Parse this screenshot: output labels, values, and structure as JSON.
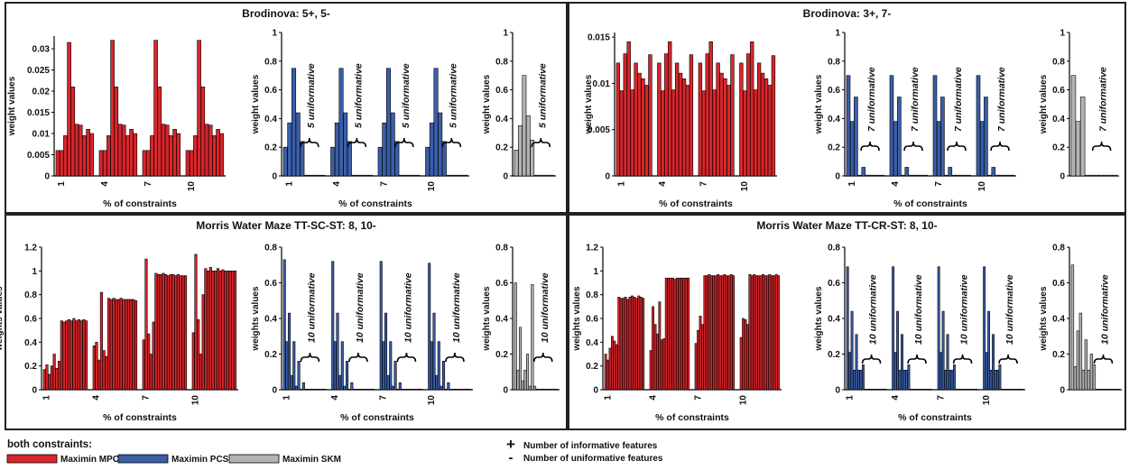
{
  "colors": {
    "mpckm": "#d9262b",
    "pcskm": "#3b5ea8",
    "skm": "#b4b4b4",
    "frame": "#222222",
    "bar_edge": "#000000"
  },
  "legend": {
    "title": "both constraints:",
    "entries": [
      {
        "key": "mpckm",
        "label": "Maximin MPCKM"
      },
      {
        "key": "pcskm",
        "label": "Maximin PCSKM"
      },
      {
        "key": "skm",
        "label": "Maximin SKM"
      }
    ],
    "symbols": [
      {
        "glyph": "+",
        "text": "Number of informative features"
      },
      {
        "glyph": "-",
        "text": "Number of uniformative features"
      }
    ]
  },
  "chart_data": [
    {
      "type": "bar",
      "title": "Brodinova: 5+, 5-",
      "subplots": [
        {
          "series": "mpckm",
          "ylabel": "weight values",
          "xlabel": "% of constraints",
          "ylim": [
            0,
            0.033
          ],
          "yticks": [
            0,
            0.005,
            0.01,
            0.015,
            0.02,
            0.025,
            0.03
          ],
          "ytick_labels": [
            "0",
            "0.005",
            "0.01",
            "0.015",
            "0.02",
            "0.025",
            "0.03"
          ],
          "xtick_labels": [
            "1",
            "4",
            "7",
            "10"
          ],
          "groups": [
            [
              0.006,
              0.006,
              0.0095,
              0.0315,
              0.021,
              0.0122,
              0.012,
              0.0095,
              0.011,
              0.01
            ],
            [
              0.006,
              0.006,
              0.0095,
              0.032,
              0.021,
              0.0122,
              0.012,
              0.0095,
              0.011,
              0.01
            ],
            [
              0.006,
              0.006,
              0.0095,
              0.032,
              0.021,
              0.0122,
              0.012,
              0.0095,
              0.011,
              0.01
            ],
            [
              0.006,
              0.006,
              0.0095,
              0.032,
              0.021,
              0.0122,
              0.012,
              0.0095,
              0.011,
              0.01
            ]
          ]
        },
        {
          "series": "pcskm",
          "ylabel": "weight values",
          "xlabel": "% of constraints",
          "ylim": [
            0,
            1
          ],
          "yticks": [
            0,
            0.2,
            0.4,
            0.6,
            0.8,
            1
          ],
          "ytick_labels": [
            "0",
            "0.2",
            "0.4",
            "0.6",
            "0.8",
            "1"
          ],
          "xtick_labels": [
            "1",
            "4",
            "7",
            "10"
          ],
          "annotation": "5 uniformative",
          "groups": [
            [
              0.2,
              0.37,
              0.75,
              0.44,
              0.24,
              0.005,
              0.005,
              0.005,
              0.005,
              0.005
            ],
            [
              0.2,
              0.37,
              0.75,
              0.44,
              0.24,
              0.005,
              0.005,
              0.005,
              0.005,
              0.005
            ],
            [
              0.2,
              0.37,
              0.75,
              0.44,
              0.24,
              0.005,
              0.005,
              0.005,
              0.005,
              0.005
            ],
            [
              0.2,
              0.37,
              0.75,
              0.44,
              0.24,
              0.005,
              0.005,
              0.005,
              0.005,
              0.005
            ]
          ]
        },
        {
          "series": "skm",
          "ylabel": "weight values",
          "ylim": [
            0,
            1
          ],
          "yticks": [
            0,
            0.2,
            0.4,
            0.6,
            0.8,
            1
          ],
          "ytick_labels": [
            "0",
            "0.2",
            "0.4",
            "0.6",
            "0.8",
            "1"
          ],
          "xtick_labels": [],
          "annotation": "5 uniformative",
          "groups": [
            [
              0.18,
              0.35,
              0.7,
              0.42,
              0.25,
              0.005,
              0.005,
              0.005,
              0.005,
              0.005
            ]
          ]
        }
      ]
    },
    {
      "type": "bar",
      "title": "Brodinova: 3+, 7-",
      "subplots": [
        {
          "series": "mpckm",
          "ylabel": "weight values",
          "xlabel": "% of constraints",
          "ylim": [
            0,
            0.0155
          ],
          "yticks": [
            0,
            0.005,
            0.01,
            0.015
          ],
          "ytick_labels": [
            "0",
            "0.005",
            "0.01",
            "0.015"
          ],
          "xtick_labels": [
            "1",
            "4",
            "7",
            "10"
          ],
          "groups": [
            [
              0.0122,
              0.0092,
              0.0132,
              0.0145,
              0.0093,
              0.0122,
              0.0111,
              0.0105,
              0.0098,
              0.0131
            ],
            [
              0.0122,
              0.0092,
              0.0132,
              0.0145,
              0.0093,
              0.0122,
              0.0111,
              0.0105,
              0.0098,
              0.0131
            ],
            [
              0.0122,
              0.0092,
              0.0132,
              0.0145,
              0.0093,
              0.0122,
              0.0111,
              0.0105,
              0.0098,
              0.0131
            ],
            [
              0.0122,
              0.0092,
              0.0132,
              0.0145,
              0.0093,
              0.0122,
              0.0111,
              0.0105,
              0.0098,
              0.013
            ]
          ]
        },
        {
          "series": "pcskm",
          "ylabel": "weight values",
          "xlabel": "% of constraints",
          "ylim": [
            0,
            1
          ],
          "yticks": [
            0,
            0.2,
            0.4,
            0.6,
            0.8,
            1
          ],
          "ytick_labels": [
            "0",
            "0.2",
            "0.4",
            "0.6",
            "0.8",
            "1"
          ],
          "xtick_labels": [
            "1",
            "4",
            "7",
            "10"
          ],
          "annotation": "7 uniformative",
          "groups": [
            [
              0.7,
              0.38,
              0.55,
              0.005,
              0.06,
              0.005,
              0.005,
              0.005,
              0.005,
              0.005
            ],
            [
              0.7,
              0.38,
              0.55,
              0.005,
              0.06,
              0.005,
              0.005,
              0.005,
              0.005,
              0.005
            ],
            [
              0.7,
              0.38,
              0.55,
              0.005,
              0.06,
              0.005,
              0.005,
              0.005,
              0.005,
              0.005
            ],
            [
              0.7,
              0.38,
              0.55,
              0.005,
              0.06,
              0.005,
              0.005,
              0.005,
              0.005,
              0.005
            ]
          ]
        },
        {
          "series": "skm",
          "ylabel": "weight values",
          "ylim": [
            0,
            1
          ],
          "yticks": [
            0,
            0.2,
            0.4,
            0.6,
            0.8,
            1
          ],
          "ytick_labels": [
            "0",
            "0.2",
            "0.4",
            "0.6",
            "0.8",
            "1"
          ],
          "xtick_labels": [],
          "annotation": "7 uniformative",
          "groups": [
            [
              0.7,
              0.38,
              0.55,
              0.005,
              0.005,
              0.005,
              0.005,
              0.005,
              0.005,
              0.005
            ]
          ]
        }
      ]
    },
    {
      "type": "bar",
      "title": "Morris Water Maze TT-SC-ST: 8, 10-",
      "subplots": [
        {
          "series": "mpckm",
          "ylabel": "weights values",
          "xlabel": "% of constraints",
          "ylim": [
            0,
            1.2
          ],
          "yticks": [
            0,
            0.2,
            0.4,
            0.6,
            0.8,
            1,
            1.2
          ],
          "ytick_labels": [
            "0",
            "0.2",
            "0.4",
            "0.6",
            "0.8",
            "1",
            "1.2"
          ],
          "xtick_labels": [
            "1",
            "4",
            "7",
            "10"
          ],
          "groups": [
            [
              0.17,
              0.21,
              0.13,
              0.2,
              0.3,
              0.18,
              0.24,
              0.58,
              0.57,
              0.58,
              0.59,
              0.58,
              0.6,
              0.58,
              0.59,
              0.58,
              0.59,
              0.58
            ],
            [
              0.37,
              0.4,
              0.25,
              0.82,
              0.33,
              0.28,
              0.77,
              0.76,
              0.77,
              0.76,
              0.76,
              0.77,
              0.76,
              0.76,
              0.76,
              0.76,
              0.76,
              0.75
            ],
            [
              0.42,
              1.1,
              0.47,
              0.3,
              0.57,
              0.98,
              0.97,
              0.97,
              0.98,
              0.97,
              0.96,
              0.97,
              0.97,
              0.96,
              0.97,
              0.96,
              0.96,
              0.96
            ],
            [
              0.48,
              1.14,
              0.59,
              0.3,
              0.8,
              1.02,
              1.0,
              1.03,
              1.0,
              1.0,
              1.02,
              1.0,
              1.01,
              1.0,
              1.0,
              1.0,
              1.0,
              1.0
            ]
          ]
        },
        {
          "series": "pcskm",
          "ylabel": "weights values",
          "xlabel": "% of constraints",
          "ylim": [
            0,
            0.8
          ],
          "yticks": [
            0,
            0.2,
            0.4,
            0.6,
            0.8
          ],
          "ytick_labels": [
            "0",
            "0.2",
            "0.4",
            "0.6",
            "0.8"
          ],
          "xtick_labels": [
            "1",
            "4",
            "7",
            "10"
          ],
          "annotation": "10 uniformative",
          "groups": [
            [
              0.73,
              0.27,
              0.43,
              0.08,
              0.27,
              0.02,
              0.16,
              0.003,
              0.04,
              0.003,
              0.003,
              0.003,
              0.003,
              0.003,
              0.003,
              0.003,
              0.003,
              0.003
            ],
            [
              0.72,
              0.27,
              0.43,
              0.08,
              0.27,
              0.02,
              0.16,
              0.003,
              0.04,
              0.003,
              0.003,
              0.003,
              0.003,
              0.003,
              0.003,
              0.003,
              0.003,
              0.003
            ],
            [
              0.72,
              0.27,
              0.43,
              0.08,
              0.27,
              0.02,
              0.16,
              0.003,
              0.04,
              0.003,
              0.003,
              0.003,
              0.003,
              0.003,
              0.003,
              0.003,
              0.003,
              0.003
            ],
            [
              0.71,
              0.27,
              0.43,
              0.08,
              0.27,
              0.02,
              0.16,
              0.003,
              0.04,
              0.003,
              0.003,
              0.003,
              0.003,
              0.003,
              0.003,
              0.003,
              0.003,
              0.003
            ]
          ]
        },
        {
          "series": "skm",
          "ylabel": "weights values",
          "ylim": [
            0,
            0.8
          ],
          "yticks": [
            0,
            0.2,
            0.4,
            0.6,
            0.8
          ],
          "ytick_labels": [
            "0",
            "0.2",
            "0.4",
            "0.6",
            "0.8"
          ],
          "xtick_labels": [],
          "annotation": "10 uniformative",
          "groups": [
            [
              0.6,
              0.11,
              0.35,
              0.05,
              0.11,
              0.2,
              0.02,
              0.59,
              0.02,
              0.003,
              0.003,
              0.003,
              0.003,
              0.003,
              0.003,
              0.003,
              0.003,
              0.003
            ]
          ]
        }
      ]
    },
    {
      "type": "bar",
      "title": "Morris Water Maze TT-CR-ST: 8, 10-",
      "subplots": [
        {
          "series": "mpckm",
          "ylabel": "weights values",
          "xlabel": "% of constraints",
          "ylim": [
            0,
            1.2
          ],
          "yticks": [
            0,
            0.2,
            0.4,
            0.6,
            0.8,
            1,
            1.2
          ],
          "ytick_labels": [
            "0",
            "0.2",
            "0.4",
            "0.6",
            "0.8",
            "1",
            "1.2"
          ],
          "xtick_labels": [
            "1",
            "4",
            "7",
            "10"
          ],
          "groups": [
            [
              0.3,
              0.25,
              0.35,
              0.45,
              0.41,
              0.38,
              0.78,
              0.77,
              0.77,
              0.78,
              0.76,
              0.78,
              0.79,
              0.78,
              0.77,
              0.79,
              0.78,
              0.77
            ],
            [
              0.33,
              0.7,
              0.55,
              0.47,
              0.74,
              0.42,
              0.43,
              0.94,
              0.94,
              0.94,
              0.94,
              0.93,
              0.94,
              0.94,
              0.94,
              0.94,
              0.94,
              0.94
            ],
            [
              0.39,
              0.5,
              0.62,
              0.55,
              0.96,
              0.96,
              0.97,
              0.96,
              0.96,
              0.96,
              0.97,
              0.96,
              0.96,
              0.97,
              0.96,
              0.96,
              0.97,
              0.96
            ],
            [
              0.44,
              0.6,
              0.59,
              0.55,
              0.97,
              0.96,
              0.97,
              0.96,
              0.96,
              0.96,
              0.97,
              0.96,
              0.96,
              0.97,
              0.96,
              0.96,
              0.97,
              0.96
            ]
          ]
        },
        {
          "series": "pcskm",
          "ylabel": "weights values",
          "xlabel": "% of constraints",
          "ylim": [
            0,
            0.8
          ],
          "yticks": [
            0,
            0.2,
            0.4,
            0.6,
            0.8
          ],
          "ytick_labels": [
            "0",
            "0.2",
            "0.4",
            "0.6",
            "0.8"
          ],
          "xtick_labels": [
            "1",
            "4",
            "7",
            "10"
          ],
          "annotation": "10 uniformative",
          "groups": [
            [
              0.69,
              0.21,
              0.44,
              0.11,
              0.31,
              0.11,
              0.11,
              0.14,
              0.003,
              0.003,
              0.003,
              0.003,
              0.003,
              0.003,
              0.003,
              0.003,
              0.003,
              0.003
            ],
            [
              0.69,
              0.21,
              0.44,
              0.11,
              0.31,
              0.11,
              0.11,
              0.14,
              0.003,
              0.003,
              0.003,
              0.003,
              0.003,
              0.003,
              0.003,
              0.003,
              0.003,
              0.003
            ],
            [
              0.69,
              0.21,
              0.44,
              0.11,
              0.31,
              0.11,
              0.11,
              0.14,
              0.003,
              0.003,
              0.003,
              0.003,
              0.003,
              0.003,
              0.003,
              0.003,
              0.003,
              0.003
            ],
            [
              0.69,
              0.21,
              0.44,
              0.11,
              0.31,
              0.11,
              0.11,
              0.14,
              0.003,
              0.003,
              0.003,
              0.003,
              0.003,
              0.003,
              0.003,
              0.003,
              0.003,
              0.003
            ]
          ]
        },
        {
          "series": "skm",
          "ylabel": "weights values",
          "ylim": [
            0,
            0.8
          ],
          "yticks": [
            0,
            0.2,
            0.4,
            0.6,
            0.8
          ],
          "ytick_labels": [
            "0",
            "0.2",
            "0.4",
            "0.6",
            "0.8"
          ],
          "xtick_labels": [],
          "annotation": "10 uniformative",
          "groups": [
            [
              0.7,
              0.13,
              0.33,
              0.43,
              0.11,
              0.28,
              0.11,
              0.2,
              0.14,
              0.003,
              0.003,
              0.003,
              0.003,
              0.003,
              0.003,
              0.003,
              0.003,
              0.003
            ]
          ]
        }
      ]
    }
  ]
}
